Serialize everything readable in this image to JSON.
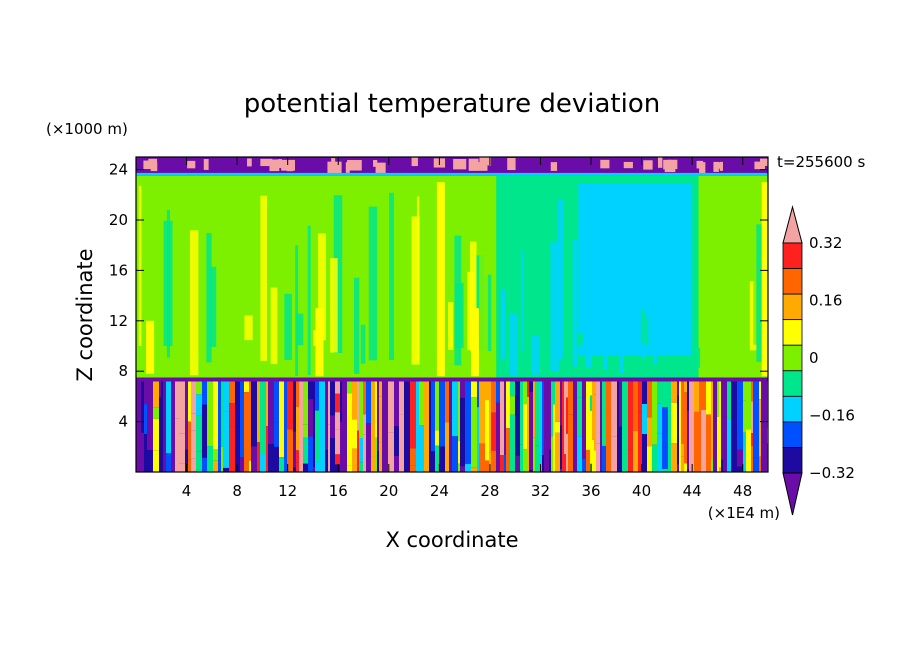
{
  "chart_data": {
    "type": "heatmap",
    "title": "potential temperature deviation",
    "xlabel": "X coordinate",
    "ylabel": "Z coordinate",
    "x_unit": "(×1E4 m)",
    "y_unit": "(×1000 m)",
    "time_label": "t=255600 s",
    "xlim": [
      0,
      50
    ],
    "ylim": [
      0,
      25
    ],
    "x_ticks": [
      4,
      8,
      12,
      16,
      20,
      24,
      28,
      32,
      36,
      40,
      44,
      48
    ],
    "y_ticks": [
      4,
      8,
      12,
      16,
      20,
      24
    ],
    "colorbar": {
      "levels": [
        -0.4,
        -0.32,
        -0.24,
        -0.16,
        -0.08,
        0,
        0.08,
        0.16,
        0.24,
        0.32,
        0.4
      ],
      "labeled": [
        "0.32",
        "0.16",
        "0",
        "−0.16",
        "−0.32"
      ],
      "colors": [
        "#6a0da8",
        "#1e0aa0",
        "#0050ff",
        "#00d2ff",
        "#00e68c",
        "#7df000",
        "#ffff00",
        "#ffaa00",
        "#ff6600",
        "#ff2020",
        "#f4a3a3"
      ],
      "extend": "both"
    },
    "layers": [
      {
        "z_range": [
          0,
          7.5
        ],
        "description_values": "mixed -0.4 to 0.4"
      },
      {
        "z_range": [
          7.5,
          23.5
        ],
        "description_values": "mostly 0 to 0.08, cyan -0.08 to 0 at x 28-44"
      },
      {
        "z_range": [
          23.5,
          25
        ],
        "description_values": "-0.4 and 0.4 bands"
      }
    ]
  }
}
